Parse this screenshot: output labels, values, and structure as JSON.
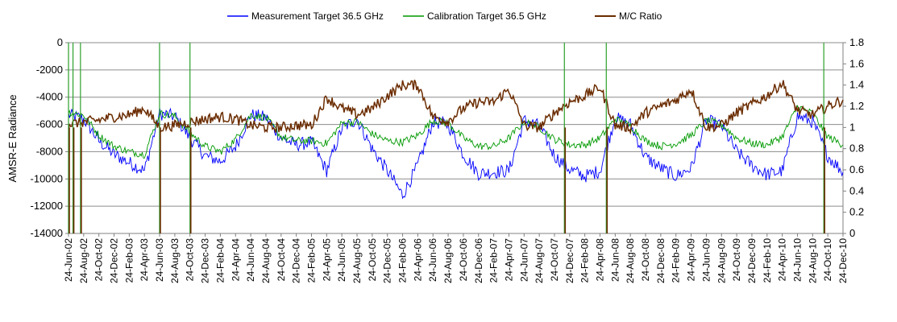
{
  "chart_data": {
    "type": "line",
    "title": "",
    "ylabel": "AMSR-E Radiance",
    "y2label": "",
    "ylim": [
      -14000,
      0
    ],
    "y2lim": [
      0,
      1.8
    ],
    "yticks": [
      "0",
      "-2000",
      "-4000",
      "-6000",
      "-8000",
      "-10000",
      "-12000",
      "-14000"
    ],
    "y2ticks": [
      "1.8",
      "1.6",
      "1.4",
      "1.2",
      "1",
      "0.8",
      "0.6",
      "0.4",
      "0.2",
      "0"
    ],
    "grid": "horizontal",
    "legend_position": "top",
    "categories": [
      "24-Jun-02",
      "24-Aug-02",
      "24-Oct-02",
      "24-Dec-02",
      "24-Feb-03",
      "24-Apr-03",
      "24-Jun-03",
      "24-Aug-03",
      "24-Oct-03",
      "24-Dec-03",
      "24-Feb-04",
      "24-Apr-04",
      "24-Jun-04",
      "24-Aug-04",
      "24-Oct-04",
      "24-Dec-04",
      "24-Feb-05",
      "24-Apr-05",
      "24-Jun-05",
      "24-Aug-05",
      "24-Oct-05",
      "24-Dec-05",
      "24-Feb-06",
      "24-Apr-06",
      "24-Jun-06",
      "24-Aug-06",
      "24-Oct-06",
      "24-Dec-06",
      "24-Feb-07",
      "24-Apr-07",
      "24-Jun-07",
      "24-Aug-07",
      "24-Oct-07",
      "24-Dec-07",
      "24-Feb-08",
      "24-Apr-08",
      "24-Jun-08",
      "24-Aug-08",
      "24-Oct-08",
      "24-Dec-08",
      "24-Feb-09",
      "24-Apr-09",
      "24-Jun-09",
      "24-Aug-09",
      "24-Oct-09",
      "24-Dec-09",
      "24-Feb-10",
      "24-Apr-10",
      "24-Jun-10",
      "24-Aug-10",
      "24-Oct-10",
      "24-Dec-10"
    ],
    "series": [
      {
        "name": "Measurement Target 36.5 GHz",
        "axis": "left",
        "color": "#0000ff",
        "values": [
          -5300,
          -5600,
          -7200,
          -8200,
          -8800,
          -9400,
          -5200,
          -5400,
          -7000,
          -8300,
          -8700,
          -7600,
          -5300,
          -5500,
          -7000,
          -7500,
          -7300,
          -9400,
          -6300,
          -5600,
          -7800,
          -9400,
          -11200,
          -9000,
          -5800,
          -6000,
          -8200,
          -9600,
          -9500,
          -9400,
          -5700,
          -6100,
          -8300,
          -9300,
          -9800,
          -9400,
          -5500,
          -6000,
          -8400,
          -9200,
          -9800,
          -9200,
          -5700,
          -6100,
          -8000,
          -9000,
          -9700,
          -9400,
          -5400,
          -5800,
          -8300,
          -9500
        ]
      },
      {
        "name": "Calibration Target 36.5 GHz",
        "axis": "left",
        "color": "#009900",
        "values": [
          -5100,
          -5300,
          -6800,
          -7600,
          -8000,
          -8200,
          -5200,
          -5400,
          -6600,
          -7600,
          -8000,
          -7100,
          -5300,
          -5500,
          -6900,
          -7200,
          -7200,
          -7400,
          -5900,
          -5800,
          -6700,
          -7200,
          -7300,
          -6800,
          -5700,
          -5900,
          -7000,
          -7600,
          -7600,
          -7000,
          -5800,
          -6200,
          -7100,
          -7500,
          -7500,
          -7000,
          -5600,
          -6100,
          -7200,
          -7600,
          -7400,
          -6800,
          -5700,
          -6000,
          -7000,
          -7400,
          -7500,
          -6900,
          -4700,
          -5200,
          -6900,
          -7500
        ]
      },
      {
        "name": "M/C Ratio",
        "axis": "right",
        "color": "#6b2c00",
        "values": [
          1.03,
          1.05,
          1.07,
          1.1,
          1.12,
          1.18,
          1.0,
          1.02,
          1.05,
          1.08,
          1.1,
          1.08,
          1.02,
          1.0,
          1.0,
          1.02,
          1.02,
          1.28,
          1.18,
          1.12,
          1.18,
          1.3,
          1.4,
          1.4,
          1.1,
          1.06,
          1.18,
          1.24,
          1.24,
          1.36,
          1.02,
          1.0,
          1.14,
          1.24,
          1.3,
          1.38,
          1.02,
          1.0,
          1.14,
          1.2,
          1.26,
          1.36,
          1.0,
          1.02,
          1.14,
          1.22,
          1.3,
          1.42,
          1.16,
          1.12,
          1.2,
          1.26
        ]
      }
    ],
    "spikes": [
      {
        "x": "24-Jun-02",
        "offset_days": 0
      },
      {
        "x": "24-Jun-02",
        "offset_days": 18
      },
      {
        "x": "24-Jun-02",
        "offset_days": 48
      },
      {
        "x": "24-Jun-03",
        "offset_days": 0
      },
      {
        "x": "24-Oct-03",
        "offset_days": 0
      },
      {
        "x": "24-Oct-07",
        "offset_days": 40
      },
      {
        "x": "24-Apr-08",
        "offset_days": 25
      },
      {
        "x": "24-Aug-10",
        "offset_days": 45
      }
    ]
  }
}
